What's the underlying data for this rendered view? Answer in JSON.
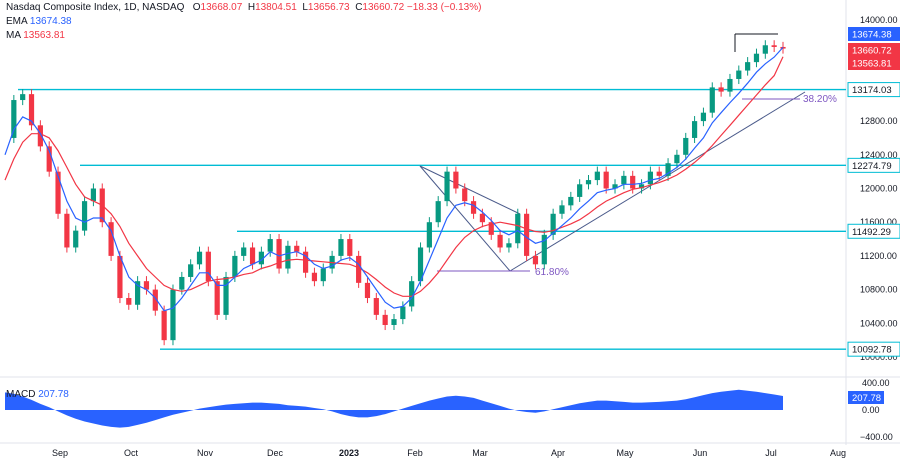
{
  "header": {
    "symbol": "Nasdaq Composite Index, 1D, NASDAQ",
    "open_label": "O",
    "open": "13668.07",
    "high_label": "H",
    "high": "13804.51",
    "low_label": "L",
    "low": "13656.73",
    "close_label": "C",
    "close": "13660.72",
    "change": "−18.33 (−0.13%)"
  },
  "indicators": {
    "ema_label": "EMA",
    "ema_value": "13674.38",
    "ma_label": "MA",
    "ma_value": "13563.81",
    "macd_label": "MACD",
    "macd_value": "207.78"
  },
  "colors": {
    "up": "#089981",
    "down": "#f23645",
    "ema": "#2962ff",
    "ma": "#f23645",
    "level_line": "#00bcd4",
    "trendline": "#4a5a8a",
    "fib": "#7e57c2",
    "macd_area": "#2962ff"
  },
  "chart_data": [
    {
      "type": "line",
      "title": "",
      "xlabel": "",
      "ylabel": "",
      "x_ticks": [
        "Sep",
        "Oct",
        "Nov",
        "Dec",
        "2023",
        "Feb",
        "Mar",
        "Apr",
        "May",
        "Jun",
        "Jul",
        "Aug"
      ],
      "y_ticks": [
        "14000.00",
        "13600.00",
        "12800.00",
        "12400.00",
        "12000.00",
        "11600.00",
        "11200.00",
        "10800.00",
        "10400.00",
        "10000.00"
      ],
      "ylim": [
        10000,
        14100
      ],
      "grid": false,
      "series": [
        {
          "name": "Nasdaq Composite Index",
          "values": [
            12600,
            13050,
            13120,
            12750,
            12500,
            12200,
            11700,
            11300,
            11500,
            11850,
            12000,
            11600,
            11200,
            10700,
            10620,
            10900,
            10800,
            10550,
            10200,
            10800,
            10950,
            11100,
            11250,
            10900,
            10500,
            10950,
            11200,
            11300,
            11100,
            11250,
            11400,
            11050,
            11320,
            11250,
            11000,
            10900,
            11050,
            11200,
            11400,
            11200,
            10880,
            10700,
            10500,
            10380,
            10450,
            10600,
            10900,
            11300,
            11600,
            11850,
            12200,
            12000,
            11850,
            11700,
            11600,
            11450,
            11300,
            11350,
            11700,
            11200,
            11100,
            11450,
            11700,
            11800,
            11900,
            12050,
            12100,
            12200,
            12000,
            12050,
            12150,
            12000,
            12050,
            12200,
            12150,
            12300,
            12400,
            12600,
            12800,
            12900,
            13200,
            13150,
            13300,
            13400,
            13500,
            13600,
            13700,
            13680,
            13660.72
          ]
        },
        {
          "name": "EMA",
          "values": [
            12400,
            12700,
            12850,
            12800,
            12650,
            12450,
            12150,
            11850,
            11650,
            11600,
            11650,
            11650,
            11500,
            11200,
            10950,
            10850,
            10800,
            10700,
            10550,
            10580,
            10700,
            10850,
            11000,
            11000,
            10850,
            10850,
            10950,
            11050,
            11100,
            11150,
            11250,
            11200,
            11230,
            11250,
            11200,
            11100,
            11050,
            11080,
            11150,
            11180,
            11100,
            10950,
            10800,
            10650,
            10580,
            10600,
            10700,
            10900,
            11150,
            11400,
            11650,
            11800,
            11830,
            11800,
            11720,
            11620,
            11500,
            11450,
            11500,
            11420,
            11350,
            11380,
            11470,
            11560,
            11650,
            11760,
            11850,
            11950,
            11980,
            12000,
            12050,
            12050,
            12060,
            12100,
            12120,
            12180,
            12250,
            12350,
            12480,
            12600,
            12780,
            12900,
            13020,
            13130,
            13250,
            13380,
            13480,
            13560,
            13674.38
          ]
        },
        {
          "name": "MA",
          "values": [
            12100,
            12350,
            12550,
            12650,
            12650,
            12600,
            12450,
            12250,
            12050,
            11900,
            11850,
            11800,
            11700,
            11550,
            11350,
            11200,
            11050,
            10950,
            10850,
            10800,
            10780,
            10800,
            10850,
            10900,
            10920,
            10930,
            10950,
            10980,
            11000,
            11050,
            11080,
            11120,
            11150,
            11160,
            11150,
            11140,
            11130,
            11120,
            11110,
            11100,
            11060,
            11000,
            10920,
            10830,
            10760,
            10720,
            10720,
            10780,
            10880,
            11000,
            11150,
            11300,
            11420,
            11500,
            11550,
            11580,
            11600,
            11580,
            11560,
            11520,
            11490,
            11480,
            11500,
            11540,
            11580,
            11630,
            11700,
            11780,
            11850,
            11900,
            11950,
            11990,
            12010,
            12040,
            12070,
            12110,
            12160,
            12230,
            12310,
            12400,
            12510,
            12630,
            12750,
            12870,
            12990,
            13110,
            13230,
            13340,
            13563.81
          ]
        }
      ],
      "horizontal_levels": [
        {
          "value": 13174.03,
          "label": "13174.03"
        },
        {
          "value": 12274.79,
          "label": "12274.79"
        },
        {
          "value": 11492.29,
          "label": "11492.29"
        },
        {
          "value": 10092.78,
          "label": "10092.78"
        }
      ],
      "price_labels": [
        {
          "value": 13674.38,
          "label": "13674.38",
          "kind": "ema"
        },
        {
          "value": 13660.72,
          "label": "13660.72",
          "kind": "close"
        },
        {
          "value": 13563.81,
          "label": "13563.81",
          "kind": "ma"
        }
      ],
      "fib_levels": [
        {
          "label": "38.20%",
          "value": 13050
        },
        {
          "label": "61.80%",
          "value": 11000
        }
      ]
    },
    {
      "type": "area",
      "title": "",
      "xlabel": "",
      "ylabel": "",
      "y_ticks": [
        "400.00",
        "0.00",
        "−400.00"
      ],
      "ylim": [
        -400,
        400
      ],
      "series": [
        {
          "name": "MACD",
          "values": [
            260,
            240,
            200,
            150,
            90,
            40,
            -20,
            -80,
            -130,
            -170,
            -200,
            -230,
            -250,
            -260,
            -250,
            -220,
            -190,
            -150,
            -110,
            -70,
            -40,
            -10,
            20,
            40,
            60,
            80,
            90,
            100,
            110,
            110,
            100,
            90,
            70,
            60,
            50,
            30,
            10,
            -20,
            -60,
            -90,
            -110,
            -110,
            -90,
            -60,
            -20,
            20,
            60,
            100,
            140,
            170,
            200,
            210,
            200,
            180,
            140,
            100,
            60,
            20,
            -10,
            -30,
            -40,
            -20,
            10,
            40,
            70,
            100,
            120,
            140,
            140,
            130,
            120,
            110,
            110,
            115,
            120,
            130,
            140,
            160,
            190,
            220,
            250,
            270,
            285,
            300,
            285,
            270,
            250,
            230,
            207.78
          ]
        }
      ]
    }
  ]
}
